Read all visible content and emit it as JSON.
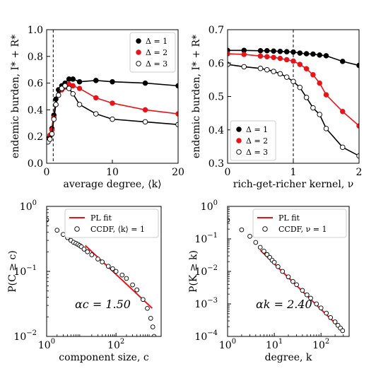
{
  "chart_data": [
    {
      "type": "line",
      "panel": "top-left",
      "xlabel": "average degree, ⟨k⟩",
      "ylabel": "endemic burden, I* + R*",
      "xlim": [
        0,
        20
      ],
      "ylim": [
        0.0,
        1.0
      ],
      "xticks": [
        0,
        10,
        20
      ],
      "xtick_labels": [
        "0",
        "10",
        "20"
      ],
      "yticks": [
        0.0,
        0.2,
        0.4,
        0.6,
        0.8,
        1.0
      ],
      "ytick_labels": [
        "0.0",
        "0.2",
        "0.4",
        "0.6",
        "0.8",
        "1.0"
      ],
      "vline": 1.0,
      "grid": false,
      "legend_position": "top-right",
      "series": [
        {
          "name": "Δ = 1",
          "marker": "filled-black",
          "color": "#000000",
          "x": [
            0.2,
            0.5,
            0.8,
            1.1,
            1.4,
            1.8,
            2.3,
            2.8,
            3.4,
            4.0,
            5.0,
            7.5,
            10.0,
            15.0,
            20.0
          ],
          "y": [
            0.18,
            0.2,
            0.26,
            0.36,
            0.48,
            0.55,
            0.58,
            0.6,
            0.63,
            0.63,
            0.61,
            0.62,
            0.61,
            0.6,
            0.58
          ]
        },
        {
          "name": "Δ = 2",
          "marker": "filled-red",
          "color": "#e8141a",
          "x": [
            0.2,
            0.5,
            0.8,
            1.1,
            1.4,
            1.8,
            2.3,
            2.8,
            3.4,
            4.0,
            5.0,
            7.5,
            10.0,
            15.0,
            20.0
          ],
          "y": [
            0.17,
            0.21,
            0.25,
            0.34,
            0.44,
            0.51,
            0.55,
            0.57,
            0.59,
            0.58,
            0.56,
            0.49,
            0.45,
            0.4,
            0.37
          ]
        },
        {
          "name": "Δ = 3",
          "marker": "open",
          "color": "#000000",
          "x": [
            0.2,
            0.5,
            0.8,
            1.1,
            1.4,
            1.8,
            2.3,
            2.8,
            3.4,
            4.0,
            5.0,
            7.5,
            10.0,
            15.0,
            20.0
          ],
          "y": [
            0.16,
            0.18,
            0.22,
            0.33,
            0.44,
            0.51,
            0.56,
            0.58,
            0.56,
            0.52,
            0.44,
            0.37,
            0.33,
            0.31,
            0.29
          ]
        }
      ]
    },
    {
      "type": "line",
      "panel": "top-right",
      "xlabel": "rich-get-richer kernel, ν",
      "ylabel": "endemic burden, I* + R*",
      "xlim": [
        0,
        2
      ],
      "ylim": [
        0.3,
        0.7
      ],
      "xticks": [
        0,
        1,
        2
      ],
      "xtick_labels": [
        "0",
        "1",
        "2"
      ],
      "yticks": [
        0.3,
        0.4,
        0.5,
        0.6,
        0.7
      ],
      "ytick_labels": [
        "0.3",
        "0.4",
        "0.5",
        "0.6",
        "0.7"
      ],
      "vline": 1.0,
      "grid": false,
      "legend_position": "bottom-left",
      "series": [
        {
          "name": "Δ = 1",
          "marker": "filled-black",
          "color": "#000000",
          "x": [
            0.0,
            0.25,
            0.5,
            0.6,
            0.7,
            0.8,
            0.9,
            1.0,
            1.1,
            1.2,
            1.3,
            1.4,
            1.5,
            1.75,
            2.0
          ],
          "y": [
            0.638,
            0.638,
            0.637,
            0.637,
            0.636,
            0.635,
            0.634,
            0.633,
            0.63,
            0.628,
            0.627,
            0.624,
            0.622,
            0.605,
            0.593
          ]
        },
        {
          "name": "Δ = 2",
          "marker": "filled-red",
          "color": "#e8141a",
          "x": [
            0.0,
            0.25,
            0.5,
            0.6,
            0.7,
            0.8,
            0.9,
            1.0,
            1.1,
            1.2,
            1.3,
            1.4,
            1.5,
            1.75,
            2.0
          ],
          "y": [
            0.628,
            0.626,
            0.621,
            0.619,
            0.617,
            0.614,
            0.61,
            0.606,
            0.596,
            0.583,
            0.565,
            0.54,
            0.505,
            0.455,
            0.412
          ]
        },
        {
          "name": "Δ = 3",
          "marker": "open",
          "color": "#000000",
          "x": [
            0.0,
            0.25,
            0.5,
            0.6,
            0.7,
            0.8,
            0.9,
            1.0,
            1.1,
            1.2,
            1.3,
            1.4,
            1.5,
            1.75,
            2.0
          ],
          "y": [
            0.596,
            0.589,
            0.584,
            0.58,
            0.575,
            0.568,
            0.558,
            0.545,
            0.527,
            0.497,
            0.466,
            0.446,
            0.404,
            0.348,
            0.322
          ]
        }
      ]
    },
    {
      "type": "scatter",
      "panel": "bottom-left",
      "xscale": "log",
      "yscale": "log",
      "xlabel": "component size, c",
      "ylabel": "P(C ≥ c)",
      "xlim": [
        1,
        2000
      ],
      "ylim": [
        0.01,
        1.0
      ],
      "xticks": [
        1,
        100
      ],
      "xtick_labels": [
        "10",
        "10"
      ],
      "xtick_exponents": [
        "0",
        "2"
      ],
      "yticks": [
        0.01,
        0.1,
        1.0
      ],
      "ytick_labels": [
        "10",
        "10",
        "10"
      ],
      "ytick_exponents": [
        "−2",
        "−1",
        "0"
      ],
      "annotation": "αc = 1.50",
      "legend_position": "top-right",
      "fit": {
        "name": "PL fit",
        "color": "#e8141a",
        "exponent": 1.5,
        "x_range": [
          13,
          1100
        ],
        "y_at_start": 0.25
      },
      "series": [
        {
          "name": "CCDF, ⟨k⟩ = 1",
          "marker": "open",
          "color": "#000000",
          "x": [
            1,
            2,
            3,
            4,
            5,
            6,
            7,
            8,
            9,
            10,
            12,
            15,
            20,
            30,
            40,
            60,
            80,
            100,
            150,
            200,
            300,
            400,
            600,
            800,
            1000,
            1150,
            1250
          ],
          "y": [
            0.62,
            0.43,
            0.37,
            0.33,
            0.3,
            0.28,
            0.27,
            0.26,
            0.25,
            0.24,
            0.22,
            0.2,
            0.18,
            0.155,
            0.14,
            0.12,
            0.11,
            0.1,
            0.088,
            0.078,
            0.062,
            0.052,
            0.037,
            0.027,
            0.019,
            0.014,
            0.01
          ]
        }
      ]
    },
    {
      "type": "scatter",
      "panel": "bottom-right",
      "xscale": "log",
      "yscale": "log",
      "xlabel": "degree, k",
      "ylabel": "P(K ≥ k)",
      "xlim": [
        1,
        400
      ],
      "ylim": [
        0.0001,
        1.0
      ],
      "xticks": [
        1,
        10,
        100
      ],
      "xtick_labels": [
        "10",
        "10",
        "10"
      ],
      "xtick_exponents": [
        "0",
        "1",
        "2"
      ],
      "yticks": [
        0.0001,
        0.001,
        0.01,
        0.1,
        1.0
      ],
      "ytick_labels": [
        "10",
        "10",
        "10",
        "10",
        "10"
      ],
      "ytick_exponents": [
        "−4",
        "−3",
        "−2",
        "−1",
        "0"
      ],
      "annotation": "αk = 2.40",
      "legend_position": "top-right",
      "fit": {
        "name": "PL fit",
        "color": "#e8141a",
        "exponent": 2.4,
        "x_range": [
          5,
          280
        ],
        "y_at_start": 0.045
      },
      "series": [
        {
          "name": "CCDF, ν = 1",
          "marker": "open",
          "color": "#000000",
          "x": [
            1,
            2,
            3,
            4,
            5,
            6,
            7,
            8,
            9,
            10,
            12,
            15,
            20,
            25,
            30,
            40,
            50,
            60,
            80,
            100,
            130,
            160,
            200,
            230,
            260,
            290
          ],
          "y": [
            0.38,
            0.19,
            0.12,
            0.078,
            0.055,
            0.042,
            0.033,
            0.027,
            0.022,
            0.019,
            0.014,
            0.01,
            0.0068,
            0.0049,
            0.0039,
            0.0026,
            0.0019,
            0.0015,
            0.001,
            0.00075,
            0.00052,
            0.00038,
            0.00028,
            0.00022,
            0.00018,
            0.00015
          ]
        }
      ]
    }
  ]
}
